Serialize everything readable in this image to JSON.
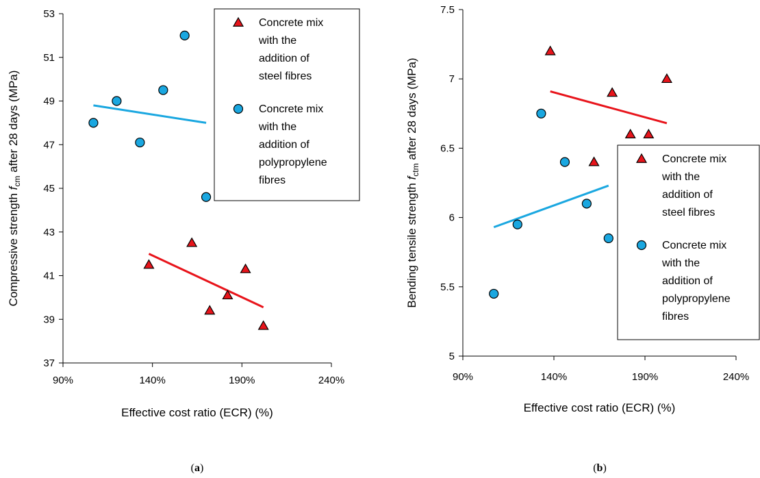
{
  "chart_data": [
    {
      "panel_label": "(a)",
      "panel_letter": "a",
      "type": "scatter",
      "xlabel": "Effective cost ratio (ECR) (%)",
      "ylabel": {
        "prefix": "Compressive strength ",
        "symbol": "f",
        "subscript": "cm",
        "suffix": " after 28 days (MPa)"
      },
      "xlim": [
        0.9,
        2.4
      ],
      "ylim": [
        37,
        53
      ],
      "x_ticks": [
        0.9,
        1.4,
        1.9,
        2.4
      ],
      "x_tick_labels": [
        "90%",
        "140%",
        "190%",
        "240%"
      ],
      "y_ticks": [
        37,
        39,
        41,
        43,
        45,
        47,
        49,
        51,
        53
      ],
      "y_tick_labels": [
        "37",
        "39",
        "41",
        "43",
        "45",
        "47",
        "49",
        "51",
        "53"
      ],
      "legend_position": "top-right",
      "series": [
        {
          "name_lines": [
            "Concrete mix",
            "with the",
            "addition of",
            "steel fibres"
          ],
          "marker": "triangle",
          "color": "#e8141b",
          "points": [
            [
              1.38,
              41.5
            ],
            [
              1.62,
              42.5
            ],
            [
              1.72,
              39.4
            ],
            [
              1.82,
              40.1
            ],
            [
              1.92,
              41.3
            ],
            [
              2.02,
              38.7
            ]
          ],
          "trend": [
            [
              1.38,
              42.0
            ],
            [
              2.02,
              39.55
            ]
          ]
        },
        {
          "name_lines": [
            "Concrete mix",
            "with the",
            "addition of",
            "polypropylene",
            "fibres"
          ],
          "marker": "circle",
          "color": "#1aa7e0",
          "points": [
            [
              1.07,
              48.0
            ],
            [
              1.2,
              49.0
            ],
            [
              1.33,
              47.1
            ],
            [
              1.46,
              49.5
            ],
            [
              1.58,
              52.0
            ],
            [
              1.7,
              44.6
            ]
          ],
          "trend": [
            [
              1.07,
              48.8
            ],
            [
              1.7,
              48.0
            ]
          ]
        }
      ]
    },
    {
      "panel_label": "(b)",
      "panel_letter": "b",
      "type": "scatter",
      "xlabel": "Effective cost ratio (ECR) (%)",
      "ylabel": {
        "prefix": "Bending tensile strength ",
        "symbol": "f",
        "subscript": "ctm",
        "suffix": " after 28 days (MPa)"
      },
      "xlim": [
        0.9,
        2.4
      ],
      "ylim": [
        5,
        7.5
      ],
      "x_ticks": [
        0.9,
        1.4,
        1.9,
        2.4
      ],
      "x_tick_labels": [
        "90%",
        "140%",
        "190%",
        "240%"
      ],
      "y_ticks": [
        5,
        5.5,
        6,
        6.5,
        7,
        7.5
      ],
      "y_tick_labels": [
        "5",
        "5.5",
        "6",
        "6.5",
        "7",
        "7.5"
      ],
      "legend_position": "right",
      "series": [
        {
          "name_lines": [
            "Concrete mix",
            "with the",
            "addition of",
            "steel fibres"
          ],
          "marker": "triangle",
          "color": "#e8141b",
          "points": [
            [
              1.38,
              7.2
            ],
            [
              1.62,
              6.4
            ],
            [
              1.72,
              6.9
            ],
            [
              1.82,
              6.6
            ],
            [
              1.92,
              6.6
            ],
            [
              2.02,
              7.0
            ]
          ],
          "trend": [
            [
              1.38,
              6.91
            ],
            [
              2.02,
              6.68
            ]
          ]
        },
        {
          "name_lines": [
            "Concrete mix",
            "with the",
            "addition of",
            "polypropylene",
            "fibres"
          ],
          "marker": "circle",
          "color": "#1aa7e0",
          "points": [
            [
              1.07,
              5.45
            ],
            [
              1.2,
              5.95
            ],
            [
              1.33,
              6.75
            ],
            [
              1.46,
              6.4
            ],
            [
              1.58,
              6.1
            ],
            [
              1.7,
              5.85
            ]
          ],
          "trend": [
            [
              1.07,
              5.93
            ],
            [
              1.7,
              6.23
            ]
          ]
        }
      ]
    }
  ]
}
